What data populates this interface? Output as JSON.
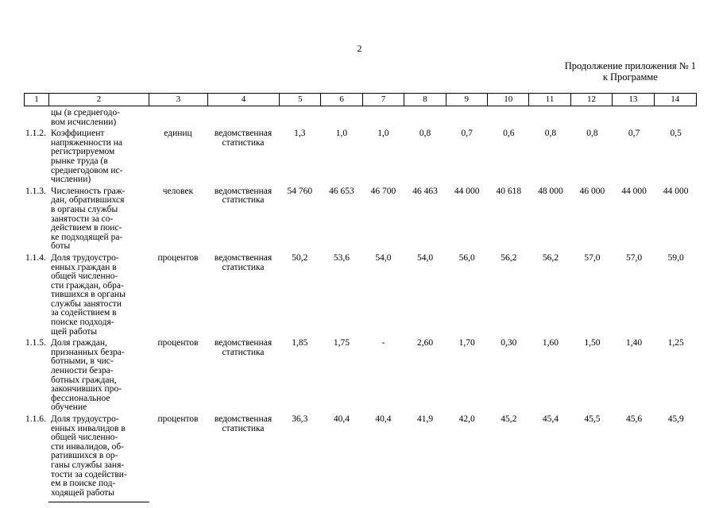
{
  "page": {
    "number": "2",
    "continuation_note": {
      "line1": "Продолжение приложения № 1",
      "line2": "к Программе"
    }
  },
  "table": {
    "column_numbers": [
      "1",
      "2",
      "3",
      "4",
      "5",
      "6",
      "7",
      "8",
      "9",
      "10",
      "11",
      "12",
      "13",
      "14"
    ],
    "rows": [
      {
        "num": "",
        "name": "цы (в среднегодо-\nвом исчислении)",
        "unit": "",
        "source": "",
        "values": [
          "",
          "",
          "",
          "",
          "",
          "",
          "",
          "",
          "",
          ""
        ]
      },
      {
        "num": "1.1.2.",
        "name": "Коэффициент\nнапряженности на\nрегистрируемом\nрынке труда (в\nсреднегодовом ис-\nчислении)",
        "unit": "единиц",
        "source": "ведомственная\nстатистика",
        "values": [
          "1,3",
          "1,0",
          "1,0",
          "0,8",
          "0,7",
          "0,6",
          "0,8",
          "0,8",
          "0,7",
          "0,5"
        ]
      },
      {
        "num": "1.1.3.",
        "name": "Численность граж-\nдан, обратившихся\nв органы службы\nзанятости за со-\nдействием в поис-\nке подходящей ра-\nботы",
        "unit": "человек",
        "source": "ведомственная\nстатистика",
        "values": [
          "54 760",
          "46 653",
          "46 700",
          "46 463",
          "44 000",
          "40 618",
          "48 000",
          "46 000",
          "44 000",
          "44 000"
        ]
      },
      {
        "num": "1.1.4.",
        "name": "Доля трудоустро-\nенных граждан в\nобщей численно-\nсти граждан, обра-\nтившихся в органы\nслужбы занятости\nза содействием в\nпоиске подходя-\nщей работы",
        "unit": "процентов",
        "source": "ведомственная\nстатистика",
        "values": [
          "50,2",
          "53,6",
          "54,0",
          "54,0",
          "56,0",
          "56,2",
          "56,2",
          "57,0",
          "57,0",
          "59,0"
        ]
      },
      {
        "num": "1.1.5.",
        "name": "Доля граждан,\nпризнанных безра-\nботными, в чис-\nленности безра-\nботных граждан,\nзакончивших про-\nфессиональное\nобучение",
        "unit": "процентов",
        "source": "ведомственная\nстатистика",
        "values": [
          "1,85",
          "1,75",
          "-",
          "2,60",
          "1,70",
          "0,30",
          "1,60",
          "1,50",
          "1,40",
          "1,25"
        ]
      },
      {
        "num": "1.1.6.",
        "name": "Доля трудоустро-\nенных инвалидов в\nобщей численно-\nсти инвалидов, об-\nратившихся в ор-\nганы службы заня-\nтости за содействи-\nем в поиске под-\nходящей работы",
        "unit": "процентов",
        "source": "ведомственная\nстатистика",
        "values": [
          "36,3",
          "40,4",
          "40,4",
          "41,9",
          "42,0",
          "45,2",
          "45,4",
          "45,5",
          "45,6",
          "45,9"
        ]
      }
    ]
  }
}
